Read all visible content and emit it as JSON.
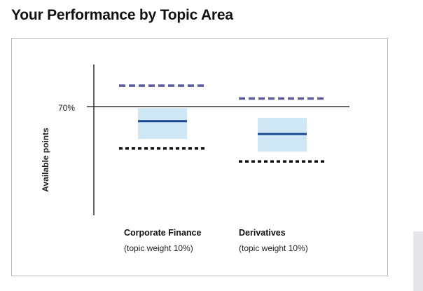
{
  "page": {
    "title": "Your Performance by Topic Area"
  },
  "chart_data": {
    "type": "box",
    "ylabel": "Available points",
    "reference_line": {
      "value": 70,
      "label": "70%"
    },
    "ylim": [
      0,
      100
    ],
    "categories": [
      {
        "name": "Corporate Finance",
        "subtitle": "(topic weight 10%)"
      },
      {
        "name": "Derivatives",
        "subtitle": "(topic weight 10%)"
      }
    ],
    "series": [
      {
        "upper_dashed": 83,
        "box_high": 69,
        "median": 61,
        "box_low": 50,
        "lower_dotted": 44
      },
      {
        "upper_dashed": 75,
        "box_high": 63,
        "median": 53,
        "box_low": 42,
        "lower_dotted": 36
      }
    ],
    "colors": {
      "box_fill": "#cfe7f5",
      "median_line": "#1b4a93",
      "upper_dashed_line": "#5b5c97",
      "lower_dotted_line": "#111111",
      "axis": "#111111"
    },
    "grid": false
  }
}
